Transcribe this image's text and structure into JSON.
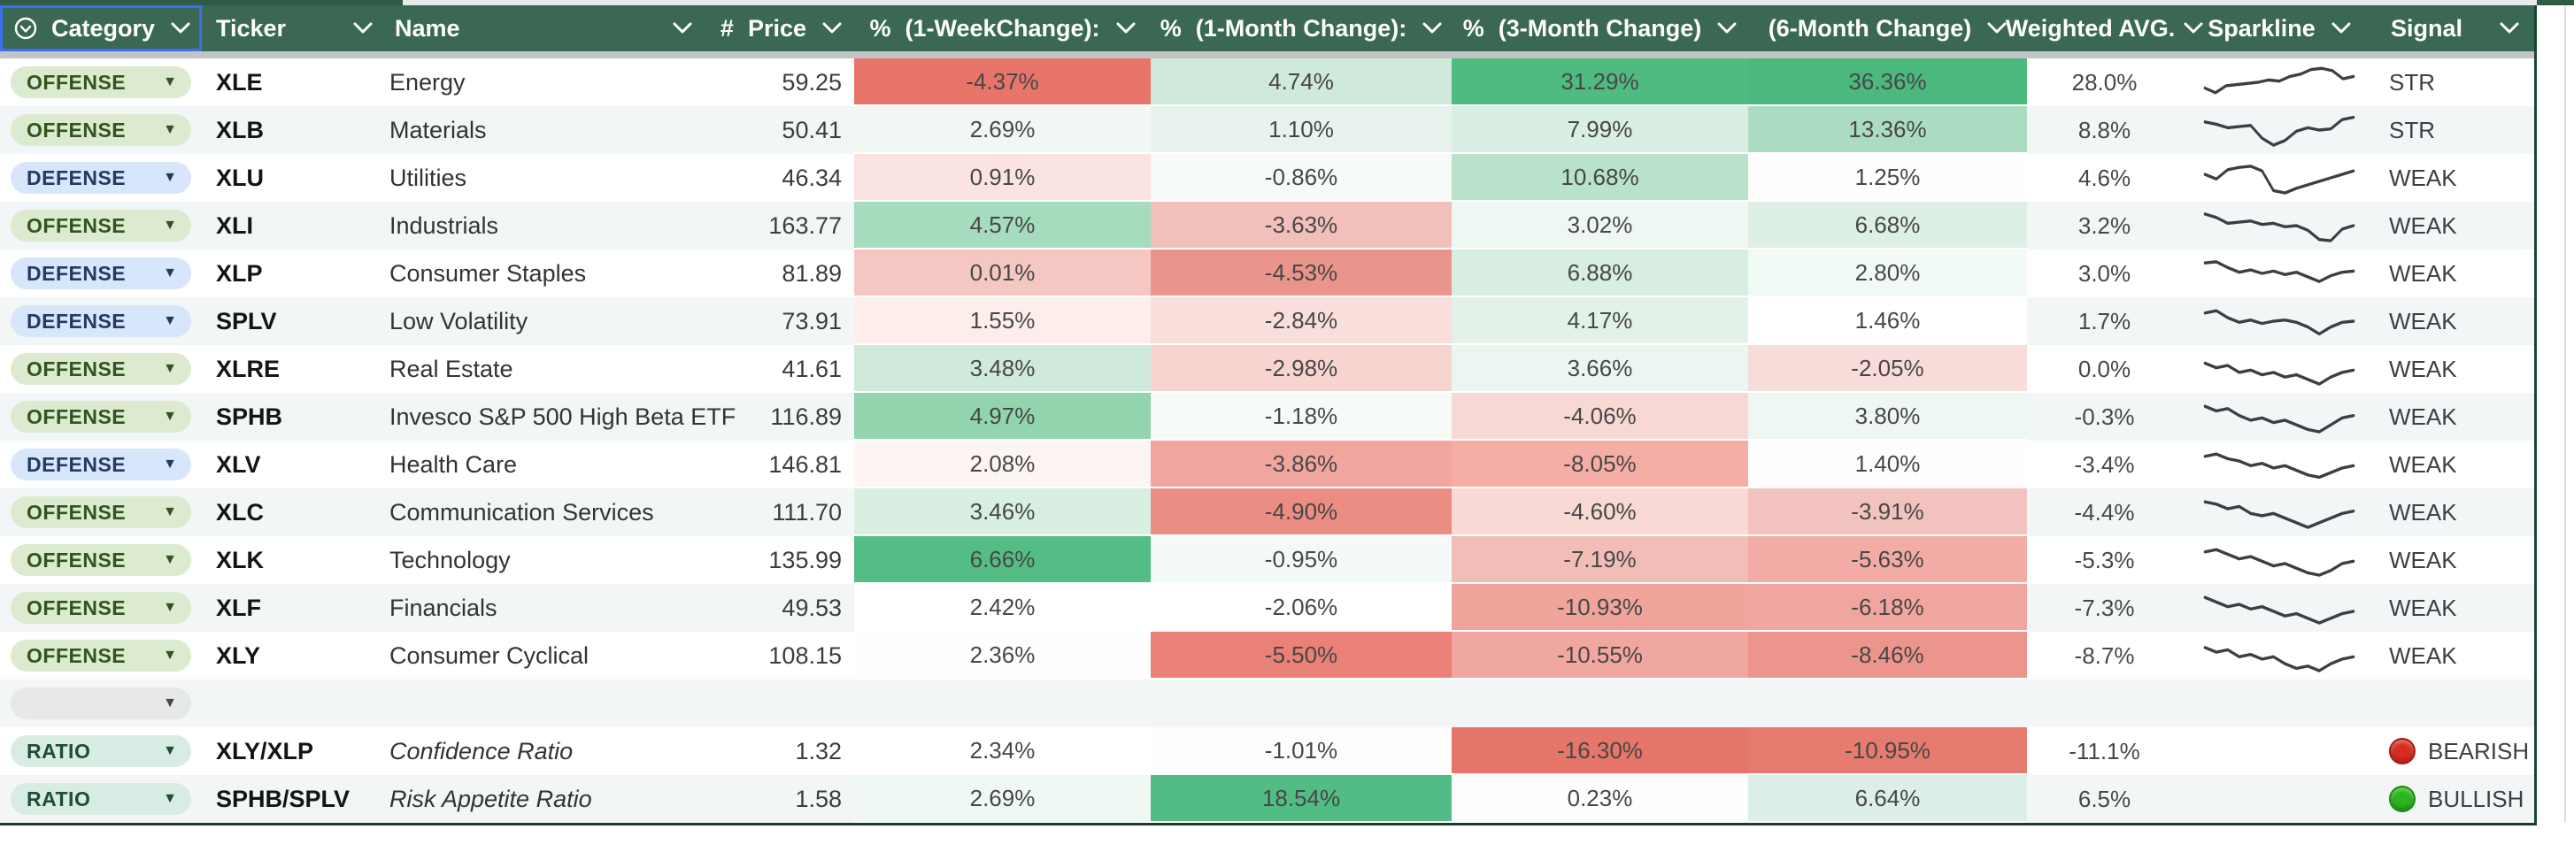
{
  "header": {
    "columns": [
      {
        "id": "category",
        "label": "Category",
        "prefix": "",
        "icon": "select-circle-chevron"
      },
      {
        "id": "ticker",
        "label": "Ticker",
        "prefix": ""
      },
      {
        "id": "name",
        "label": "Name",
        "prefix": ""
      },
      {
        "id": "price",
        "label": "Price",
        "prefix": "#"
      },
      {
        "id": "week1",
        "label": "(1-WeekChange):",
        "prefix": "%"
      },
      {
        "id": "month1",
        "label": "(1-Month Change):",
        "prefix": "%"
      },
      {
        "id": "month3",
        "label": "(3-Month Change)",
        "prefix": "%"
      },
      {
        "id": "month6",
        "label": "(6-Month Change)",
        "prefix": ""
      },
      {
        "id": "wavg",
        "label": "Weighted AVG.",
        "prefix": ""
      },
      {
        "id": "spark",
        "label": "Sparkline",
        "prefix": ""
      },
      {
        "id": "signal",
        "label": "Signal",
        "prefix": ""
      }
    ]
  },
  "category_styles": {
    "OFFENSE": {
      "bg": "#dcead0",
      "fg": "#33541d"
    },
    "DEFENSE": {
      "bg": "#d8e6fb",
      "fg": "#243a63"
    },
    "RATIO": {
      "bg": "#d9ece3",
      "fg": "#1d4d38"
    },
    "_empty": {
      "bg": "#e7e8e9",
      "fg": "#474747"
    }
  },
  "signal_dots": {
    "red": {
      "fill": "#d62d20",
      "border": "#a61b10"
    },
    "green": {
      "fill": "#2cb51e",
      "border": "#1d8c12"
    }
  },
  "accent": {
    "header_bg": "#3a6854",
    "selection_blue": "#3c6df2",
    "dark_line": "#1c3b2d"
  },
  "rows": [
    {
      "category": "OFFENSE",
      "show_pill": true,
      "ticker": "XLE",
      "name": "Energy",
      "italic": false,
      "price": "59.25",
      "w1": {
        "v": "-4.37%",
        "bg": "#e8756a"
      },
      "m1": {
        "v": "4.74%",
        "bg": "#cfe9da"
      },
      "m3": {
        "v": "31.29%",
        "bg": "#4fbb80"
      },
      "m6": {
        "v": "36.36%",
        "bg": "#4bb97e"
      },
      "wavg": "28.0%",
      "spark": [
        20,
        24,
        18,
        17,
        16,
        15,
        13,
        14,
        10,
        8,
        4,
        3,
        5,
        12,
        10
      ],
      "signal": {
        "label": "STR",
        "dot": null
      }
    },
    {
      "category": "OFFENSE",
      "show_pill": true,
      "ticker": "XLB",
      "name": "Materials",
      "italic": false,
      "price": "50.41",
      "w1": {
        "v": "2.69%",
        "bg": "#f1f8f4"
      },
      "m1": {
        "v": "1.10%",
        "bg": "#e7f3ec"
      },
      "m3": {
        "v": "7.99%",
        "bg": "#d9efe3"
      },
      "m6": {
        "v": "13.36%",
        "bg": "#abdcc2"
      },
      "wavg": "8.8%",
      "spark": [
        8,
        10,
        13,
        12,
        11,
        22,
        28,
        24,
        16,
        13,
        15,
        14,
        6,
        4
      ],
      "signal": {
        "label": "STR",
        "dot": null
      }
    },
    {
      "category": "DEFENSE",
      "show_pill": true,
      "ticker": "XLU",
      "name": "Utilities",
      "italic": false,
      "price": "46.34",
      "w1": {
        "v": "0.91%",
        "bg": "#fbe3e1"
      },
      "m1": {
        "v": "-0.86%",
        "bg": "#f6faf8"
      },
      "m3": {
        "v": "10.68%",
        "bg": "#b9e2cb"
      },
      "m6": {
        "v": "1.25%",
        "bg": "#fdfefd"
      },
      "wavg": "4.6%",
      "spark": [
        12,
        16,
        8,
        6,
        5,
        9,
        26,
        28,
        24,
        21,
        18,
        15,
        12,
        9
      ],
      "signal": {
        "label": "WEAK",
        "dot": null
      }
    },
    {
      "category": "OFFENSE",
      "show_pill": true,
      "ticker": "XLI",
      "name": "Industrials",
      "italic": false,
      "price": "163.77",
      "w1": {
        "v": "4.57%",
        "bg": "#a5dcbe"
      },
      "m1": {
        "v": "-3.63%",
        "bg": "#f2c0bb"
      },
      "m3": {
        "v": "3.02%",
        "bg": "#eef7f2"
      },
      "m6": {
        "v": "6.68%",
        "bg": "#def0e6"
      },
      "wavg": "3.2%",
      "spark": [
        5,
        8,
        13,
        12,
        11,
        14,
        13,
        16,
        15,
        19,
        27,
        28,
        18,
        15
      ],
      "signal": {
        "label": "WEAK",
        "dot": null
      }
    },
    {
      "category": "DEFENSE",
      "show_pill": true,
      "ticker": "XLP",
      "name": "Consumer Staples",
      "italic": false,
      "price": "81.89",
      "w1": {
        "v": "0.01%",
        "bg": "#f5c7c2"
      },
      "m1": {
        "v": "-4.53%",
        "bg": "#ea958c"
      },
      "m3": {
        "v": "6.88%",
        "bg": "#d8eee2"
      },
      "m6": {
        "v": "2.80%",
        "bg": "#f2faf5"
      },
      "wavg": "3.0%",
      "spark": [
        6,
        5,
        10,
        14,
        12,
        15,
        13,
        16,
        14,
        18,
        22,
        17,
        14,
        13
      ],
      "signal": {
        "label": "WEAK",
        "dot": null
      }
    },
    {
      "category": "DEFENSE",
      "show_pill": true,
      "ticker": "SPLV",
      "name": "Low Volatility",
      "italic": false,
      "price": "73.91",
      "w1": {
        "v": "1.55%",
        "bg": "#fdeeec"
      },
      "m1": {
        "v": "-2.84%",
        "bg": "#fadedb"
      },
      "m3": {
        "v": "4.17%",
        "bg": "#e3f2e9"
      },
      "m6": {
        "v": "1.46%",
        "bg": "#fefffe"
      },
      "wavg": "1.7%",
      "spark": [
        8,
        6,
        12,
        16,
        14,
        17,
        15,
        14,
        16,
        20,
        26,
        20,
        16,
        15
      ],
      "signal": {
        "label": "WEAK",
        "dot": null
      }
    },
    {
      "category": "OFFENSE",
      "show_pill": true,
      "ticker": "XLRE",
      "name": "Real Estate",
      "italic": false,
      "price": "41.61",
      "w1": {
        "v": "3.48%",
        "bg": "#cfeadb"
      },
      "m1": {
        "v": "-2.98%",
        "bg": "#f7d4d0"
      },
      "m3": {
        "v": "3.66%",
        "bg": "#ecf6f0"
      },
      "m6": {
        "v": "-2.05%",
        "bg": "#f8dcd9"
      },
      "wavg": "0.0%",
      "spark": [
        10,
        14,
        12,
        18,
        16,
        20,
        18,
        22,
        20,
        24,
        28,
        22,
        18,
        16
      ],
      "signal": {
        "label": "WEAK",
        "dot": null
      }
    },
    {
      "category": "OFFENSE",
      "show_pill": true,
      "ticker": "SPHB",
      "name": "Invesco S&P 500 High Beta ETF",
      "italic": false,
      "price": "116.89",
      "w1": {
        "v": "4.97%",
        "bg": "#92d4ae"
      },
      "m1": {
        "v": "-1.18%",
        "bg": "#f6fbf8"
      },
      "m3": {
        "v": "-4.06%",
        "bg": "#f8d8d4"
      },
      "m6": {
        "v": "3.80%",
        "bg": "#eef7f2"
      },
      "wavg": "-0.3%",
      "spark": [
        6,
        10,
        8,
        14,
        18,
        16,
        20,
        18,
        22,
        26,
        28,
        22,
        16,
        14
      ],
      "signal": {
        "label": "WEAK",
        "dot": null
      }
    },
    {
      "category": "DEFENSE",
      "show_pill": true,
      "ticker": "XLV",
      "name": "Health Care",
      "italic": false,
      "price": "146.81",
      "w1": {
        "v": "2.08%",
        "bg": "#fdf5f4"
      },
      "m1": {
        "v": "-3.86%",
        "bg": "#f0a69f"
      },
      "m3": {
        "v": "-8.05%",
        "bg": "#f4aea6"
      },
      "m6": {
        "v": "1.40%",
        "bg": "#fefefe"
      },
      "wavg": "-3.4%",
      "spark": [
        8,
        6,
        10,
        12,
        16,
        14,
        18,
        16,
        20,
        24,
        26,
        22,
        18,
        16
      ],
      "signal": {
        "label": "WEAK",
        "dot": null
      }
    },
    {
      "category": "OFFENSE",
      "show_pill": true,
      "ticker": "XLC",
      "name": "Communication Services",
      "italic": false,
      "price": "111.70",
      "w1": {
        "v": "3.46%",
        "bg": "#d9efe2"
      },
      "m1": {
        "v": "-4.90%",
        "bg": "#ec8d84"
      },
      "m3": {
        "v": "-4.60%",
        "bg": "#f8d9d5"
      },
      "m6": {
        "v": "-3.91%",
        "bg": "#f2c3be"
      },
      "wavg": "-4.4%",
      "spark": [
        6,
        8,
        12,
        10,
        16,
        18,
        16,
        20,
        24,
        28,
        24,
        20,
        16,
        14
      ],
      "signal": {
        "label": "WEAK",
        "dot": null
      }
    },
    {
      "category": "OFFENSE",
      "show_pill": true,
      "ticker": "XLK",
      "name": "Technology",
      "italic": false,
      "price": "135.99",
      "w1": {
        "v": "6.66%",
        "bg": "#53bd85"
      },
      "m1": {
        "v": "-0.95%",
        "bg": "#f4faf7"
      },
      "m3": {
        "v": "-7.19%",
        "bg": "#f3bdb7"
      },
      "m6": {
        "v": "-5.63%",
        "bg": "#f2aca5"
      },
      "wavg": "-5.3%",
      "spark": [
        8,
        6,
        10,
        14,
        12,
        16,
        20,
        18,
        22,
        26,
        28,
        24,
        18,
        16
      ],
      "signal": {
        "label": "WEAK",
        "dot": null
      }
    },
    {
      "category": "OFFENSE",
      "show_pill": true,
      "ticker": "XLF",
      "name": "Financials",
      "italic": false,
      "price": "49.53",
      "w1": {
        "v": "2.42%",
        "bg": "#ffffff"
      },
      "m1": {
        "v": "-2.06%",
        "bg": "#ffffff"
      },
      "m3": {
        "v": "-10.93%",
        "bg": "#f0a49b"
      },
      "m6": {
        "v": "-6.18%",
        "bg": "#f0a69e"
      },
      "wavg": "-7.3%",
      "spark": [
        6,
        10,
        14,
        12,
        16,
        14,
        18,
        22,
        20,
        24,
        28,
        24,
        20,
        18
      ],
      "signal": {
        "label": "WEAK",
        "dot": null
      }
    },
    {
      "category": "OFFENSE",
      "show_pill": true,
      "ticker": "XLY",
      "name": "Consumer Cyclical",
      "italic": false,
      "price": "108.15",
      "w1": {
        "v": "2.36%",
        "bg": "#fefefe"
      },
      "m1": {
        "v": "-5.50%",
        "bg": "#e98176"
      },
      "m3": {
        "v": "-10.55%",
        "bg": "#f0a79f"
      },
      "m6": {
        "v": "-8.46%",
        "bg": "#ec958c"
      },
      "wavg": "-8.7%",
      "spark": [
        8,
        12,
        10,
        16,
        14,
        18,
        16,
        22,
        26,
        24,
        28,
        22,
        18,
        16
      ],
      "signal": {
        "label": "WEAK",
        "dot": null
      }
    },
    {
      "category": "",
      "show_pill": true,
      "ticker": "",
      "name": "",
      "italic": false,
      "price": "",
      "w1": {
        "v": "",
        "bg": null
      },
      "m1": {
        "v": "",
        "bg": null
      },
      "m3": {
        "v": "",
        "bg": null
      },
      "m6": {
        "v": "",
        "bg": null
      },
      "wavg": "",
      "spark": null,
      "signal": {
        "label": "",
        "dot": null
      }
    },
    {
      "category": "RATIO",
      "show_pill": true,
      "ticker": "XLY/XLP",
      "name": "Confidence Ratio",
      "italic": true,
      "price": "1.32",
      "w1": {
        "v": "2.34%",
        "bg": "#ffffff"
      },
      "m1": {
        "v": "-1.01%",
        "bg": "#fdfdfd"
      },
      "m3": {
        "v": "-16.30%",
        "bg": "#e57669"
      },
      "m6": {
        "v": "-10.95%",
        "bg": "#e67b6f"
      },
      "wavg": "-11.1%",
      "spark": null,
      "signal": {
        "label": "BEARISH",
        "dot": "red"
      }
    },
    {
      "category": "RATIO",
      "show_pill": true,
      "ticker": "SPHB/SPLV",
      "name": "Risk Appetite Ratio",
      "italic": true,
      "price": "1.58",
      "w1": {
        "v": "2.69%",
        "bg": "#f0f8f3"
      },
      "m1": {
        "v": "18.54%",
        "bg": "#52bc85"
      },
      "m3": {
        "v": "0.23%",
        "bg": "#fefefe"
      },
      "m6": {
        "v": "6.64%",
        "bg": "#ddefe6"
      },
      "wavg": "6.5%",
      "spark": null,
      "signal": {
        "label": "BULLISH",
        "dot": "green"
      }
    }
  ]
}
